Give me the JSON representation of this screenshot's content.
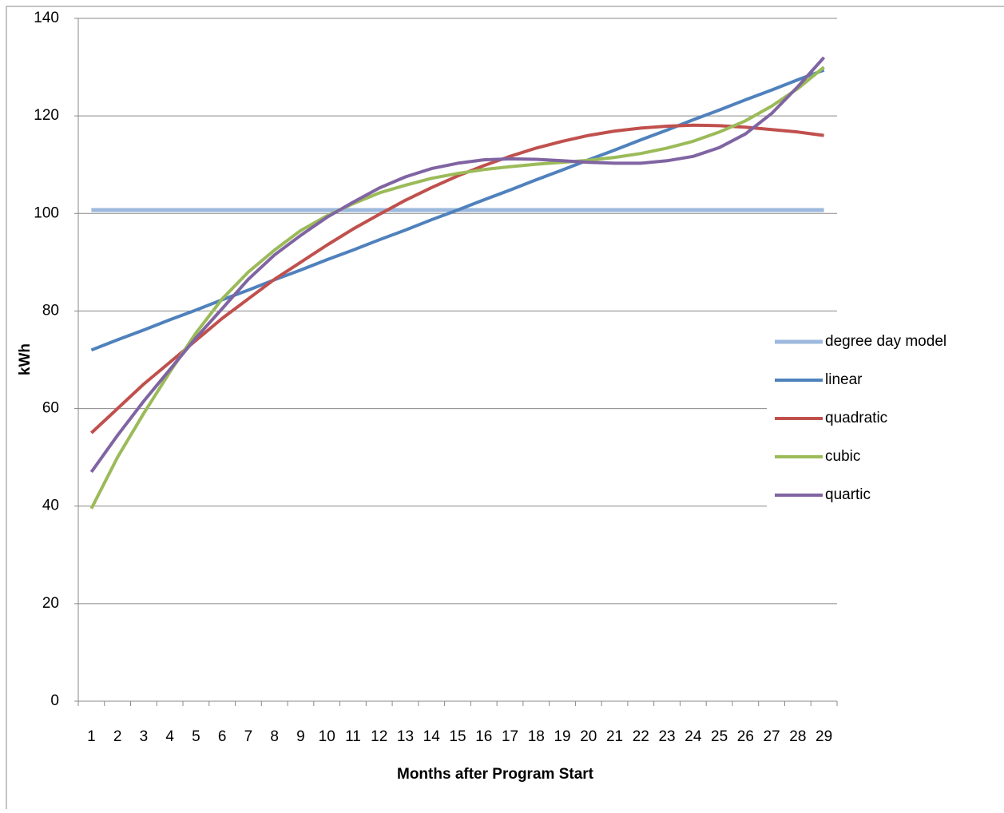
{
  "chart_data": {
    "type": "line",
    "x_label": "Months after Program Start",
    "y_label": "kWh",
    "categories": [
      "1",
      "2",
      "3",
      "4",
      "5",
      "6",
      "7",
      "8",
      "9",
      "10",
      "11",
      "12",
      "13",
      "14",
      "15",
      "16",
      "17",
      "18",
      "19",
      "20",
      "21",
      "22",
      "23",
      "24",
      "25",
      "26",
      "27",
      "28",
      "29"
    ],
    "ylim": [
      0,
      140
    ],
    "yticks": [
      0,
      20,
      40,
      60,
      80,
      100,
      120,
      140
    ],
    "grid": true,
    "legend": "right",
    "series": [
      {
        "name": "degree day model",
        "color": "#9db9dd",
        "values": [
          100.7,
          100.7,
          100.7,
          100.7,
          100.7,
          100.7,
          100.7,
          100.7,
          100.7,
          100.7,
          100.7,
          100.7,
          100.7,
          100.7,
          100.7,
          100.7,
          100.7,
          100.7,
          100.7,
          100.7,
          100.7,
          100.7,
          100.7,
          100.7,
          100.7,
          100.7,
          100.7,
          100.7,
          100.7
        ]
      },
      {
        "name": "linear",
        "color": "#4f81bd",
        "values": [
          72,
          74.1,
          76.1,
          78.2,
          80.2,
          82.3,
          84.3,
          86.4,
          88.4,
          90.5,
          92.5,
          94.6,
          96.6,
          98.7,
          100.7,
          102.8,
          104.8,
          106.9,
          108.9,
          111,
          113,
          115.1,
          117.1,
          119.2,
          121.2,
          123.3,
          125.3,
          127.4,
          129.4
        ]
      },
      {
        "name": "quadratic",
        "color": "#c0504d",
        "values": [
          55,
          60,
          65,
          69.5,
          74,
          78.5,
          82.5,
          86.5,
          90,
          93.5,
          96.8,
          99.8,
          102.7,
          105.3,
          107.7,
          109.8,
          111.7,
          113.4,
          114.8,
          116,
          116.9,
          117.5,
          117.9,
          118.1,
          118,
          117.7,
          117.2,
          116.7,
          116
        ]
      },
      {
        "name": "cubic",
        "color": "#9bbb59",
        "values": [
          39.5,
          50,
          59,
          67.5,
          75.5,
          82.5,
          88,
          92.5,
          96.5,
          99.5,
          102,
          104.2,
          105.8,
          107.2,
          108.2,
          109,
          109.6,
          110.1,
          110.5,
          110.9,
          111.5,
          112.3,
          113.4,
          114.8,
          116.7,
          119,
          122,
          125.6,
          130
        ]
      },
      {
        "name": "quartic",
        "color": "#8064a2",
        "values": [
          47,
          54.5,
          61.5,
          68,
          74.5,
          80.5,
          86.5,
          91.5,
          95.5,
          99.2,
          102.3,
          105.2,
          107.5,
          109.2,
          110.3,
          111,
          111.2,
          111.1,
          110.8,
          110.5,
          110.3,
          110.3,
          110.8,
          111.7,
          113.5,
          116.3,
          120.5,
          126,
          132
        ]
      }
    ]
  }
}
